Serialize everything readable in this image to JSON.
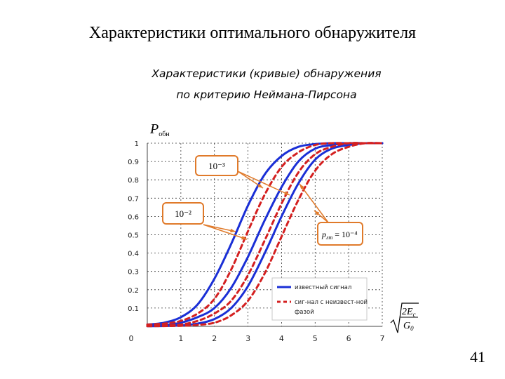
{
  "slide": {
    "title": "Характеристики оптимального обнаружителя",
    "subtitle_line1": "Характеристики (кривые) обнаружения",
    "subtitle_line2": "по критерию Неймана-Пирсона",
    "page_number": "41"
  },
  "chart_data": {
    "type": "line",
    "ylabel_main": "P",
    "ylabel_sub": "обн",
    "xlabel_formula": "√(2E_c / G_0)",
    "xlim": [
      0,
      7
    ],
    "ylim": [
      0,
      1
    ],
    "x_ticks": [
      "0",
      "1",
      "2",
      "3",
      "4",
      "5",
      "6",
      "7"
    ],
    "y_ticks": [
      "0.1",
      "0.2",
      "0.3",
      "0.4",
      "0.5",
      "0.6",
      "0.7",
      "0.8",
      "0.9",
      "1"
    ],
    "grid": true,
    "legend_position": "bottom-right",
    "annotations": [
      {
        "label": "10⁻³"
      },
      {
        "label": "10⁻²"
      },
      {
        "label_main": "p",
        "label_sub": "лт",
        "label_rest": " = 10⁻⁴"
      }
    ],
    "series": [
      {
        "name": "известный сигнал",
        "style": "solid",
        "color": "#1a2fd6",
        "x": [
          0,
          0.5,
          1,
          1.5,
          2,
          2.5,
          3,
          3.5,
          4,
          4.5,
          5,
          5.5,
          6,
          6.5,
          7
        ],
        "y": [
          0.01,
          0.02,
          0.05,
          0.12,
          0.26,
          0.45,
          0.66,
          0.83,
          0.93,
          0.98,
          0.995,
          1,
          1,
          1,
          1
        ]
      },
      {
        "style": "solid",
        "color": "#1a2fd6",
        "x": [
          0,
          0.5,
          1,
          1.5,
          2,
          2.5,
          3,
          3.5,
          4,
          4.5,
          5,
          5.5,
          6,
          6.5,
          7
        ],
        "y": [
          0.003,
          0.007,
          0.02,
          0.05,
          0.1,
          0.21,
          0.38,
          0.58,
          0.76,
          0.9,
          0.97,
          0.99,
          1,
          1,
          1
        ]
      },
      {
        "style": "solid",
        "color": "#1a2fd6",
        "x": [
          0,
          0.5,
          1,
          1.5,
          2,
          2.5,
          3,
          3.5,
          4,
          4.5,
          5,
          5.5,
          6,
          6.5,
          7
        ],
        "y": [
          0.001,
          0.002,
          0.005,
          0.015,
          0.04,
          0.1,
          0.22,
          0.4,
          0.6,
          0.78,
          0.91,
          0.97,
          0.99,
          1,
          1
        ]
      },
      {
        "name": "сиг-нал с неизвест-ной фазой",
        "style": "dashed",
        "color": "#d42020",
        "x": [
          0,
          0.5,
          1,
          1.5,
          2,
          2.5,
          3,
          3.5,
          4,
          4.5,
          5,
          5.5,
          6,
          6.5,
          7
        ],
        "y": [
          0.01,
          0.015,
          0.03,
          0.07,
          0.15,
          0.31,
          0.52,
          0.72,
          0.87,
          0.95,
          0.99,
          1,
          1,
          1,
          1
        ]
      },
      {
        "style": "dashed",
        "color": "#d42020",
        "x": [
          0,
          0.5,
          1,
          1.5,
          2,
          2.5,
          3,
          3.5,
          4,
          4.5,
          5,
          5.5,
          6,
          6.5,
          7
        ],
        "y": [
          0.003,
          0.005,
          0.01,
          0.03,
          0.07,
          0.14,
          0.28,
          0.47,
          0.67,
          0.84,
          0.94,
          0.98,
          1,
          1,
          1
        ]
      },
      {
        "style": "dashed",
        "color": "#d42020",
        "x": [
          0,
          0.5,
          1,
          1.5,
          2,
          2.5,
          3,
          3.5,
          4,
          4.5,
          5,
          5.5,
          6,
          6.5,
          7
        ],
        "y": [
          0.001,
          0.0015,
          0.003,
          0.008,
          0.02,
          0.06,
          0.14,
          0.29,
          0.49,
          0.69,
          0.85,
          0.94,
          0.98,
          1,
          1
        ]
      }
    ]
  }
}
